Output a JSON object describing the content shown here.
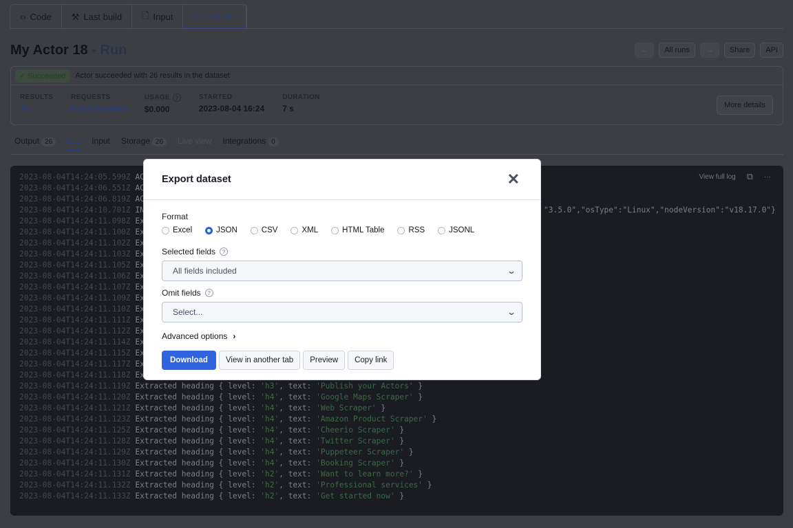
{
  "tabs": [
    {
      "label": "Code",
      "icon": "code-icon"
    },
    {
      "label": "Last build",
      "icon": "hammer-icon"
    },
    {
      "label": "Input",
      "icon": "file-icon"
    },
    {
      "label": "Last run",
      "icon": "play-icon",
      "active": true
    }
  ],
  "page": {
    "title": "My Actor 18",
    "title_suffix": "- Run"
  },
  "top_buttons": {
    "all_runs": "All runs",
    "share": "Share",
    "api": "API"
  },
  "status": {
    "badge": "Succeeded",
    "message": "Actor succeeded with 26 results in the dataset"
  },
  "stats": [
    {
      "label": "RESULTS",
      "value": "26"
    },
    {
      "label": "REQUESTS",
      "value": "0 of 0 handled"
    },
    {
      "label": "USAGE",
      "value": "$0.000"
    },
    {
      "label": "STARTED",
      "value": "2023-08-04 16:24"
    },
    {
      "label": "DURATION",
      "value": "7 s"
    }
  ],
  "more_details": "More details",
  "subtabs": [
    {
      "label": "Output",
      "count": "26"
    },
    {
      "label": "Log",
      "active": true
    },
    {
      "label": "Input"
    },
    {
      "label": "Storage",
      "count": "26"
    },
    {
      "label": "Live view",
      "disabled": true
    },
    {
      "label": "Integrations",
      "count": "0"
    }
  ],
  "log": {
    "view_full": "View full log",
    "line4_tail": "\"3.5.0\",\"osType\":\"Linux\",\"nodeVersion\":\"v18.17.0\"}",
    "lines": [
      {
        "ts": "2023-08-04T14:24:05.599Z",
        "msg": "AC"
      },
      {
        "ts": "2023-08-04T14:24:06.551Z",
        "msg": "AC"
      },
      {
        "ts": "2023-08-04T14:24:06.819Z",
        "msg": "AC"
      },
      {
        "ts": "2023-08-04T14:24:10.701Z",
        "msg": "IN"
      },
      {
        "ts": "2023-08-04T14:24:11.098Z",
        "msg": "Ex"
      },
      {
        "ts": "2023-08-04T14:24:11.100Z",
        "msg": "Ex"
      },
      {
        "ts": "2023-08-04T14:24:11.102Z",
        "msg": "Ex"
      },
      {
        "ts": "2023-08-04T14:24:11.103Z",
        "msg": "Ex"
      },
      {
        "ts": "2023-08-04T14:24:11.105Z",
        "msg": "Ex"
      },
      {
        "ts": "2023-08-04T14:24:11.106Z",
        "msg": "Ex"
      },
      {
        "ts": "2023-08-04T14:24:11.107Z",
        "msg": "Ex"
      },
      {
        "ts": "2023-08-04T14:24:11.109Z",
        "msg": "Ex"
      },
      {
        "ts": "2023-08-04T14:24:11.110Z",
        "msg": "Ex"
      },
      {
        "ts": "2023-08-04T14:24:11.111Z",
        "msg": "Ex"
      },
      {
        "ts": "2023-08-04T14:24:11.112Z",
        "msg": "Ex"
      },
      {
        "ts": "2023-08-04T14:24:11.114Z",
        "msg": "Ex"
      },
      {
        "ts": "2023-08-04T14:24:11.115Z",
        "msg": "Ex"
      },
      {
        "ts": "2023-08-04T14:24:11.117Z",
        "msg": "Ex"
      },
      {
        "ts": "2023-08-04T14:24:11.118Z",
        "msg": "Ex"
      },
      {
        "ts": "2023-08-04T14:24:11.119Z",
        "level": "h3",
        "text": "Publish your Actors"
      },
      {
        "ts": "2023-08-04T14:24:11.120Z",
        "level": "h4",
        "text": "Google Maps Scraper"
      },
      {
        "ts": "2023-08-04T14:24:11.121Z",
        "level": "h4",
        "text": "Web Scraper"
      },
      {
        "ts": "2023-08-04T14:24:11.123Z",
        "level": "h4",
        "text": "Amazon Product Scraper"
      },
      {
        "ts": "2023-08-04T14:24:11.125Z",
        "level": "h4",
        "text": "Cheerio Scraper"
      },
      {
        "ts": "2023-08-04T14:24:11.128Z",
        "level": "h4",
        "text": "Twitter Scraper"
      },
      {
        "ts": "2023-08-04T14:24:11.129Z",
        "level": "h4",
        "text": "Puppeteer Scraper"
      },
      {
        "ts": "2023-08-04T14:24:11.130Z",
        "level": "h4",
        "text": "Booking Scraper"
      },
      {
        "ts": "2023-08-04T14:24:11.131Z",
        "level": "h2",
        "text": "Want to learn more?"
      },
      {
        "ts": "2023-08-04T14:24:11.132Z",
        "level": "h2",
        "text": "Professional services"
      },
      {
        "ts": "2023-08-04T14:24:11.133Z",
        "level": "h2",
        "text": "Get started now"
      }
    ]
  },
  "modal": {
    "title": "Export dataset",
    "format_label": "Format",
    "formats": [
      {
        "label": "Excel"
      },
      {
        "label": "JSON",
        "selected": true
      },
      {
        "label": "CSV"
      },
      {
        "label": "XML"
      },
      {
        "label": "HTML Table"
      },
      {
        "label": "RSS"
      },
      {
        "label": "JSONL"
      }
    ],
    "selected_fields_label": "Selected fields",
    "selected_fields_value": "All fields included",
    "omit_fields_label": "Omit fields",
    "omit_fields_placeholder": "Select...",
    "advanced_options": "Advanced options",
    "buttons": {
      "download": "Download",
      "view_tab": "View in another tab",
      "preview": "Preview",
      "copy_link": "Copy link"
    }
  },
  "colors": {
    "accent": "#2f63e0",
    "success": "#2e7d3f"
  }
}
